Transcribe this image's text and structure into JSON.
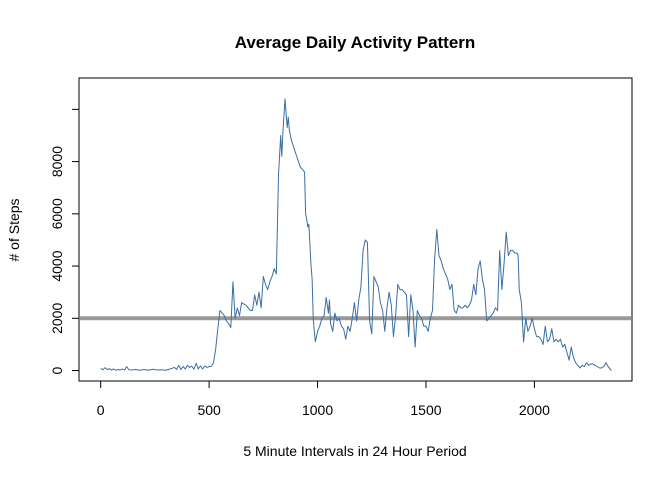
{
  "chart_data": {
    "type": "line",
    "title": "Average Daily Activity Pattern",
    "xlabel": "5 Minute Intervals in 24 Hour Period",
    "ylabel": "# of Steps",
    "xlim": [
      -100,
      2450
    ],
    "ylim": [
      -400,
      11200
    ],
    "x_ticks": [
      0,
      500,
      1000,
      1500,
      2000
    ],
    "y_ticks": [
      0,
      2000,
      4000,
      6000,
      8000
    ],
    "y_ticks_unlabeled": [
      10000
    ],
    "grid": false,
    "legend": "none",
    "reference_line": {
      "y": 2000,
      "color": "#999999"
    },
    "series": [
      {
        "color": "#3a6ea5",
        "points": [
          [
            0,
            80
          ],
          [
            10,
            30
          ],
          [
            20,
            110
          ],
          [
            30,
            40
          ],
          [
            40,
            70
          ],
          [
            50,
            20
          ],
          [
            60,
            60
          ],
          [
            70,
            10
          ],
          [
            80,
            40
          ],
          [
            90,
            20
          ],
          [
            100,
            60
          ],
          [
            110,
            20
          ],
          [
            120,
            150
          ],
          [
            130,
            30
          ],
          [
            140,
            20
          ],
          [
            160,
            40
          ],
          [
            180,
            10
          ],
          [
            200,
            40
          ],
          [
            220,
            10
          ],
          [
            240,
            50
          ],
          [
            260,
            20
          ],
          [
            280,
            30
          ],
          [
            300,
            10
          ],
          [
            320,
            60
          ],
          [
            340,
            120
          ],
          [
            350,
            40
          ],
          [
            360,
            200
          ],
          [
            370,
            40
          ],
          [
            380,
            160
          ],
          [
            390,
            60
          ],
          [
            400,
            200
          ],
          [
            410,
            120
          ],
          [
            420,
            170
          ],
          [
            430,
            50
          ],
          [
            440,
            280
          ],
          [
            450,
            60
          ],
          [
            460,
            180
          ],
          [
            470,
            60
          ],
          [
            480,
            180
          ],
          [
            490,
            120
          ],
          [
            500,
            150
          ],
          [
            510,
            160
          ],
          [
            520,
            300
          ],
          [
            530,
            800
          ],
          [
            540,
            1600
          ],
          [
            550,
            2300
          ],
          [
            560,
            2200
          ],
          [
            570,
            2100
          ],
          [
            580,
            1900
          ],
          [
            590,
            1800
          ],
          [
            600,
            1650
          ],
          [
            610,
            3400
          ],
          [
            620,
            2000
          ],
          [
            630,
            2400
          ],
          [
            640,
            2100
          ],
          [
            650,
            2600
          ],
          [
            670,
            2500
          ],
          [
            690,
            2300
          ],
          [
            700,
            2300
          ],
          [
            710,
            2900
          ],
          [
            720,
            2500
          ],
          [
            730,
            3000
          ],
          [
            740,
            2400
          ],
          [
            750,
            3600
          ],
          [
            760,
            3300
          ],
          [
            770,
            3100
          ],
          [
            780,
            3400
          ],
          [
            790,
            3600
          ],
          [
            800,
            3900
          ],
          [
            810,
            3700
          ],
          [
            820,
            7500
          ],
          [
            830,
            9000
          ],
          [
            835,
            8200
          ],
          [
            840,
            9100
          ],
          [
            850,
            10400
          ],
          [
            860,
            9300
          ],
          [
            865,
            9700
          ],
          [
            870,
            9200
          ],
          [
            880,
            8800
          ],
          [
            900,
            8300
          ],
          [
            920,
            7800
          ],
          [
            940,
            7600
          ],
          [
            945,
            6000
          ],
          [
            950,
            5800
          ],
          [
            955,
            5500
          ],
          [
            960,
            5600
          ],
          [
            970,
            4000
          ],
          [
            975,
            3500
          ],
          [
            980,
            2000
          ],
          [
            985,
            1500
          ],
          [
            990,
            1100
          ],
          [
            1000,
            1500
          ],
          [
            1010,
            1700
          ],
          [
            1020,
            2000
          ],
          [
            1030,
            2100
          ],
          [
            1040,
            2800
          ],
          [
            1050,
            2200
          ],
          [
            1055,
            2700
          ],
          [
            1060,
            1800
          ],
          [
            1070,
            1500
          ],
          [
            1080,
            2200
          ],
          [
            1090,
            1900
          ],
          [
            1100,
            2000
          ],
          [
            1110,
            1700
          ],
          [
            1120,
            1600
          ],
          [
            1130,
            1200
          ],
          [
            1140,
            1700
          ],
          [
            1150,
            1500
          ],
          [
            1160,
            2000
          ],
          [
            1170,
            2600
          ],
          [
            1180,
            1900
          ],
          [
            1190,
            2700
          ],
          [
            1200,
            3200
          ],
          [
            1210,
            4600
          ],
          [
            1220,
            5000
          ],
          [
            1230,
            4900
          ],
          [
            1240,
            1900
          ],
          [
            1250,
            1400
          ],
          [
            1260,
            3600
          ],
          [
            1270,
            3400
          ],
          [
            1280,
            3200
          ],
          [
            1290,
            2600
          ],
          [
            1300,
            2300
          ],
          [
            1310,
            1500
          ],
          [
            1320,
            2400
          ],
          [
            1330,
            3000
          ],
          [
            1340,
            2500
          ],
          [
            1350,
            1300
          ],
          [
            1360,
            2100
          ],
          [
            1370,
            3300
          ],
          [
            1380,
            3100
          ],
          [
            1390,
            3100
          ],
          [
            1400,
            3000
          ],
          [
            1410,
            2900
          ],
          [
            1420,
            1300
          ],
          [
            1430,
            2900
          ],
          [
            1440,
            2300
          ],
          [
            1450,
            900
          ],
          [
            1460,
            2300
          ],
          [
            1470,
            2100
          ],
          [
            1480,
            2000
          ],
          [
            1490,
            1700
          ],
          [
            1500,
            1700
          ],
          [
            1510,
            1500
          ],
          [
            1520,
            2000
          ],
          [
            1530,
            2300
          ],
          [
            1540,
            4300
          ],
          [
            1550,
            5400
          ],
          [
            1560,
            4400
          ],
          [
            1570,
            4200
          ],
          [
            1580,
            3900
          ],
          [
            1590,
            3700
          ],
          [
            1600,
            3500
          ],
          [
            1610,
            3100
          ],
          [
            1620,
            3300
          ],
          [
            1630,
            2300
          ],
          [
            1640,
            2200
          ],
          [
            1650,
            2500
          ],
          [
            1660,
            2400
          ],
          [
            1670,
            2400
          ],
          [
            1680,
            2500
          ],
          [
            1690,
            2400
          ],
          [
            1700,
            2500
          ],
          [
            1710,
            2700
          ],
          [
            1720,
            3300
          ],
          [
            1730,
            2900
          ],
          [
            1740,
            3900
          ],
          [
            1750,
            4200
          ],
          [
            1760,
            3500
          ],
          [
            1770,
            3100
          ],
          [
            1780,
            1900
          ],
          [
            1790,
            2000
          ],
          [
            1800,
            2100
          ],
          [
            1810,
            2200
          ],
          [
            1820,
            2400
          ],
          [
            1830,
            2300
          ],
          [
            1840,
            4600
          ],
          [
            1850,
            3100
          ],
          [
            1860,
            4100
          ],
          [
            1870,
            5300
          ],
          [
            1880,
            4400
          ],
          [
            1890,
            4600
          ],
          [
            1900,
            4600
          ],
          [
            1910,
            4500
          ],
          [
            1920,
            4500
          ],
          [
            1925,
            4400
          ],
          [
            1930,
            3100
          ],
          [
            1940,
            2600
          ],
          [
            1950,
            1100
          ],
          [
            1960,
            2000
          ],
          [
            1970,
            1500
          ],
          [
            1980,
            1700
          ],
          [
            1990,
            2000
          ],
          [
            2000,
            1600
          ],
          [
            2010,
            1300
          ],
          [
            2020,
            1300
          ],
          [
            2030,
            1200
          ],
          [
            2040,
            1000
          ],
          [
            2050,
            1700
          ],
          [
            2060,
            1100
          ],
          [
            2070,
            1200
          ],
          [
            2080,
            1600
          ],
          [
            2090,
            1100
          ],
          [
            2100,
            1200
          ],
          [
            2110,
            1100
          ],
          [
            2120,
            1200
          ],
          [
            2130,
            900
          ],
          [
            2140,
            1000
          ],
          [
            2150,
            700
          ],
          [
            2160,
            400
          ],
          [
            2170,
            900
          ],
          [
            2180,
            500
          ],
          [
            2190,
            300
          ],
          [
            2200,
            200
          ],
          [
            2210,
            100
          ],
          [
            2220,
            200
          ],
          [
            2230,
            150
          ],
          [
            2240,
            300
          ],
          [
            2250,
            200
          ],
          [
            2260,
            250
          ],
          [
            2270,
            250
          ],
          [
            2280,
            200
          ],
          [
            2290,
            150
          ],
          [
            2300,
            100
          ],
          [
            2310,
            100
          ],
          [
            2320,
            150
          ],
          [
            2330,
            300
          ],
          [
            2340,
            150
          ],
          [
            2350,
            50
          ],
          [
            2355,
            0
          ]
        ]
      }
    ]
  }
}
